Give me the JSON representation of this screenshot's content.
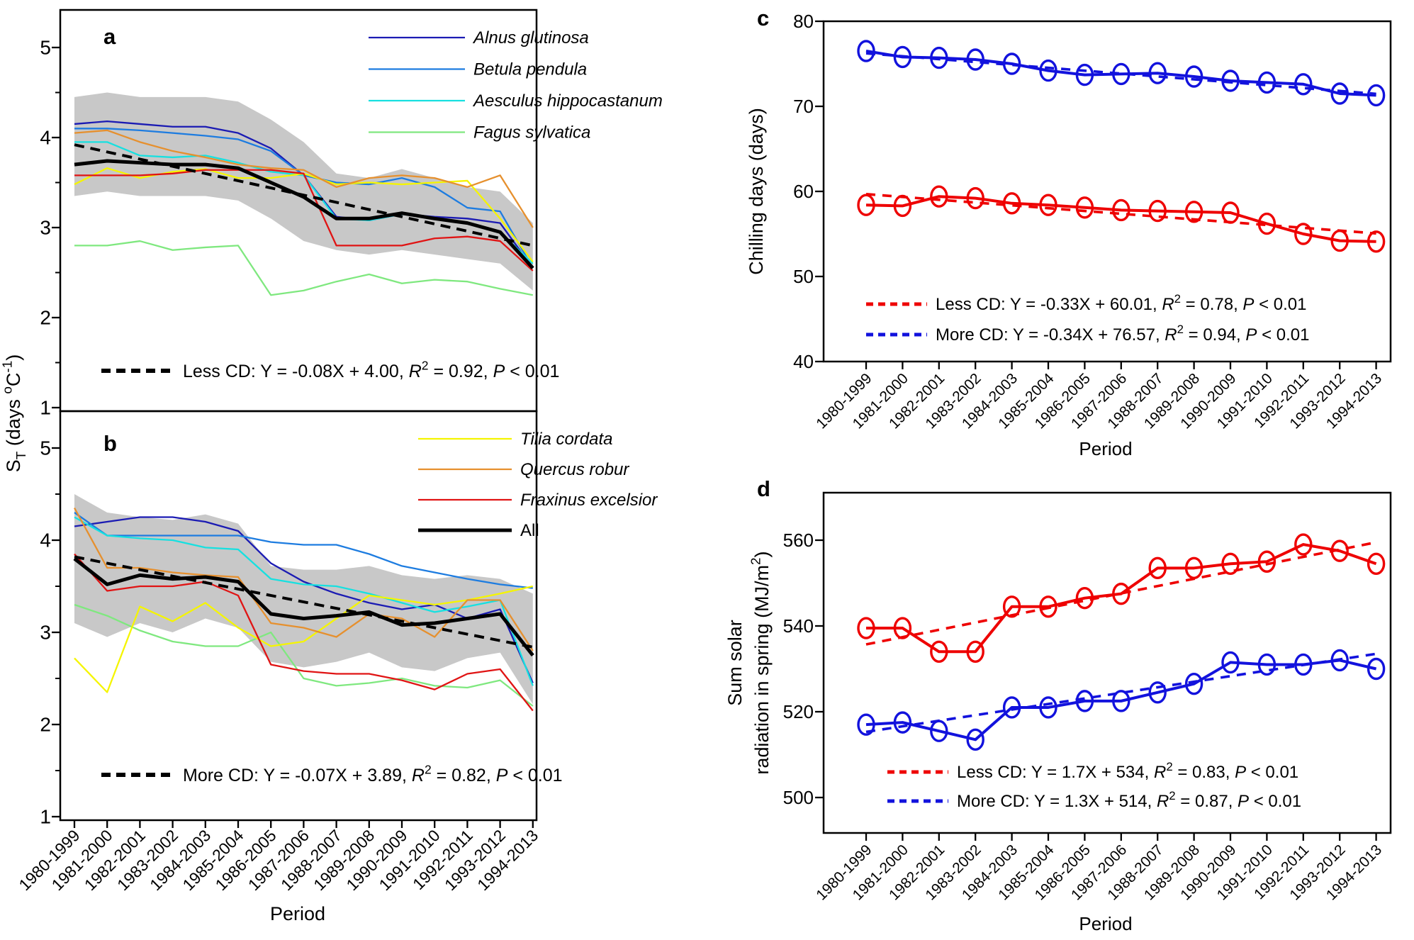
{
  "xlabel": "Period",
  "periods": [
    "1980-1999",
    "1981-2000",
    "1982-2001",
    "1983-2002",
    "1984-2003",
    "1985-2004",
    "1986-2005",
    "1987-2006",
    "1988-2007",
    "1989-2008",
    "1990-2009",
    "1991-2010",
    "1992-2011",
    "1993-2012",
    "1994-2013"
  ],
  "left_ylabel_parts": [
    {
      "t": "S"
    },
    {
      "t": "T",
      "v": "sub"
    },
    {
      "t": " (days "
    },
    {
      "t": "o",
      "v": "sup"
    },
    {
      "t": "C"
    },
    {
      "t": "-1",
      "v": "sup"
    },
    {
      "t": ")"
    }
  ],
  "colors": {
    "alnus": "#1b1bb3",
    "betula": "#1d7ce0",
    "aesculus": "#17e0e0",
    "fagus": "#7fe87f",
    "tilia": "#f5f500",
    "quercus": "#e6902e",
    "fraxinus": "#e01414",
    "all": "#000000",
    "band": "#c8c8c8",
    "cd_red": "#ee0000",
    "cd_blue": "#1212dd",
    "axis": "#000000"
  },
  "chart_data": [
    {
      "id": "a",
      "type": "line",
      "panel_label": "a",
      "ylim": [
        1,
        5.45
      ],
      "yticks": [
        1,
        2,
        3,
        4,
        5
      ],
      "yticks_minor": [
        1.5,
        2.5,
        3.5,
        4.5
      ],
      "grid": false,
      "legend_position": "top-right",
      "band": {
        "upper": [
          4.45,
          4.5,
          4.45,
          4.45,
          4.45,
          4.4,
          4.2,
          3.95,
          3.6,
          3.55,
          3.65,
          3.55,
          3.45,
          3.4,
          3.05
        ],
        "lower": [
          3.35,
          3.4,
          3.35,
          3.35,
          3.35,
          3.3,
          3.1,
          2.85,
          2.75,
          2.7,
          2.75,
          2.7,
          2.65,
          2.6,
          2.3
        ]
      },
      "series": [
        {
          "name": "Alnus glutinosa",
          "color_key": "alnus",
          "values": [
            4.15,
            4.18,
            4.15,
            4.12,
            4.12,
            4.05,
            3.88,
            3.58,
            3.12,
            3.08,
            3.15,
            3.12,
            3.1,
            3.05,
            2.55
          ]
        },
        {
          "name": "Betula pendula",
          "color_key": "betula",
          "values": [
            4.1,
            4.1,
            4.08,
            4.05,
            4.02,
            3.98,
            3.85,
            3.58,
            3.5,
            3.48,
            3.55,
            3.45,
            3.22,
            3.18,
            2.55
          ]
        },
        {
          "name": "Aesculus hippocastanum",
          "color_key": "aesculus",
          "values": [
            3.95,
            3.95,
            3.8,
            3.78,
            3.8,
            3.72,
            3.62,
            3.58,
            3.1,
            3.08,
            3.15,
            3.1,
            3.05,
            2.95,
            2.6
          ]
        },
        {
          "name": "Fagus sylvatica",
          "color_key": "fagus",
          "values": [
            2.8,
            2.8,
            2.85,
            2.75,
            2.78,
            2.8,
            2.25,
            2.3,
            2.4,
            2.48,
            2.38,
            2.42,
            2.4,
            2.32,
            2.25
          ]
        },
        {
          "name": "Tilia cordata",
          "color_key": "tilia",
          "in_legend": false,
          "values": [
            3.48,
            3.66,
            3.55,
            3.62,
            3.65,
            3.55,
            3.55,
            3.6,
            3.48,
            3.5,
            3.48,
            3.5,
            3.52,
            3.1,
            2.62
          ]
        },
        {
          "name": "Quercus robur",
          "color_key": "quercus",
          "in_legend": false,
          "values": [
            4.05,
            4.08,
            3.95,
            3.85,
            3.78,
            3.7,
            3.66,
            3.64,
            3.45,
            3.55,
            3.58,
            3.55,
            3.45,
            3.58,
            3.0
          ]
        },
        {
          "name": "Fraxinus excelsior",
          "color_key": "fraxinus",
          "in_legend": false,
          "values": [
            3.58,
            3.58,
            3.58,
            3.6,
            3.64,
            3.64,
            3.64,
            3.6,
            2.8,
            2.8,
            2.8,
            2.88,
            2.9,
            2.85,
            2.52
          ]
        },
        {
          "name": "All",
          "color_key": "all",
          "in_legend": false,
          "thick": true,
          "values": [
            3.7,
            3.74,
            3.72,
            3.7,
            3.7,
            3.66,
            3.5,
            3.34,
            3.1,
            3.1,
            3.16,
            3.1,
            3.05,
            2.95,
            2.55
          ]
        }
      ],
      "legend": [
        {
          "label": "Alnus glutinosa",
          "color_key": "alnus",
          "italic": true
        },
        {
          "label": "Betula pendula",
          "color_key": "betula",
          "italic": true
        },
        {
          "label": "Aesculus hippocastanum",
          "color_key": "aesculus",
          "italic": true
        },
        {
          "label": "Fagus sylvatica",
          "color_key": "fagus",
          "italic": true
        }
      ],
      "trend": {
        "slope": -0.08,
        "intercept": 4.0,
        "color_key": "all"
      },
      "equation": {
        "prefix": "Less CD: ",
        "formula": "Y = -0.08X + 4.00",
        "r2": "0.92",
        "p": "< 0.01"
      }
    },
    {
      "id": "b",
      "type": "line",
      "panel_label": "b",
      "ylim": [
        1,
        5.45
      ],
      "yticks": [
        1,
        2,
        3,
        4,
        5
      ],
      "yticks_minor": [
        1.5,
        2.5,
        3.5,
        4.5
      ],
      "band": {
        "upper": [
          4.5,
          4.3,
          4.25,
          4.22,
          4.28,
          4.18,
          3.72,
          3.68,
          3.68,
          3.72,
          3.62,
          3.58,
          3.62,
          3.58,
          3.42
        ],
        "lower": [
          3.1,
          2.95,
          3.1,
          3.0,
          3.15,
          3.05,
          2.68,
          2.62,
          2.68,
          2.78,
          2.62,
          2.58,
          2.72,
          2.78,
          2.22
        ]
      },
      "series": [
        {
          "name": "Alnus glutinosa",
          "color_key": "alnus",
          "values": [
            4.15,
            4.2,
            4.25,
            4.25,
            4.2,
            4.1,
            3.75,
            3.55,
            3.42,
            3.32,
            3.25,
            3.3,
            3.15,
            3.25,
            2.45
          ]
        },
        {
          "name": "Betula pendula",
          "color_key": "betula",
          "values": [
            4.3,
            4.05,
            4.05,
            4.05,
            4.05,
            4.05,
            3.98,
            3.95,
            3.95,
            3.85,
            3.72,
            3.65,
            3.58,
            3.52,
            3.48
          ]
        },
        {
          "name": "Aesculus hippocastanum",
          "color_key": "aesculus",
          "values": [
            4.25,
            4.05,
            4.02,
            4.0,
            3.92,
            3.9,
            3.58,
            3.52,
            3.5,
            3.42,
            3.32,
            3.22,
            3.28,
            3.35,
            2.42
          ]
        },
        {
          "name": "Fagus sylvatica",
          "color_key": "fagus",
          "values": [
            3.3,
            3.18,
            3.02,
            2.9,
            2.85,
            2.85,
            3.0,
            2.5,
            2.42,
            2.45,
            2.5,
            2.42,
            2.4,
            2.48,
            2.2
          ]
        },
        {
          "name": "Tilia cordata",
          "color_key": "tilia",
          "values": [
            2.72,
            2.35,
            3.28,
            3.12,
            3.32,
            3.05,
            2.85,
            2.9,
            3.15,
            3.4,
            3.35,
            3.3,
            3.35,
            3.42,
            3.5
          ]
        },
        {
          "name": "Quercus robur",
          "color_key": "quercus",
          "values": [
            4.35,
            3.7,
            3.7,
            3.65,
            3.62,
            3.6,
            3.1,
            3.05,
            2.95,
            3.2,
            3.15,
            2.95,
            3.35,
            3.35,
            2.8
          ]
        },
        {
          "name": "Fraxinus excelsior",
          "color_key": "fraxinus",
          "values": [
            3.85,
            3.45,
            3.5,
            3.5,
            3.55,
            3.4,
            2.65,
            2.58,
            2.55,
            2.55,
            2.48,
            2.38,
            2.55,
            2.6,
            2.15
          ]
        },
        {
          "name": "All",
          "color_key": "all",
          "thick": true,
          "values": [
            3.8,
            3.52,
            3.62,
            3.58,
            3.6,
            3.55,
            3.2,
            3.15,
            3.18,
            3.22,
            3.08,
            3.1,
            3.15,
            3.2,
            2.75
          ]
        }
      ],
      "legend": [
        {
          "label": "Tilia cordata",
          "color_key": "tilia",
          "italic": true
        },
        {
          "label": "Quercus robur",
          "color_key": "quercus",
          "italic": true
        },
        {
          "label": "Fraxinus excelsior",
          "color_key": "fraxinus",
          "italic": true
        },
        {
          "label": "All",
          "color_key": "all",
          "italic": false,
          "thick": true
        }
      ],
      "trend": {
        "slope": -0.07,
        "intercept": 3.89,
        "color_key": "all"
      },
      "equation": {
        "prefix": "More CD: ",
        "formula": "Y = -0.07X + 3.89",
        "r2": "0.82",
        "p": "< 0.01"
      }
    },
    {
      "id": "c",
      "type": "line",
      "panel_label": "c",
      "ylabel": "Chilling days (days)",
      "ylim": [
        40,
        80
      ],
      "yticks": [
        40,
        50,
        60,
        70,
        80
      ],
      "series": [
        {
          "name": "More CD",
          "color_key": "cd_blue",
          "marker": "circle",
          "values": [
            76.5,
            75.8,
            75.7,
            75.5,
            75.0,
            74.2,
            73.7,
            73.8,
            73.9,
            73.5,
            73.0,
            72.8,
            72.6,
            71.5,
            71.3
          ]
        },
        {
          "name": "Less CD",
          "color_key": "cd_red",
          "marker": "circle",
          "values": [
            58.4,
            58.3,
            59.4,
            59.2,
            58.6,
            58.4,
            58.1,
            57.8,
            57.7,
            57.6,
            57.5,
            56.2,
            55.0,
            54.2,
            54.1
          ]
        }
      ],
      "trends": [
        {
          "slope": -0.33,
          "intercept": 60.01,
          "color_key": "cd_red"
        },
        {
          "slope": -0.34,
          "intercept": 76.57,
          "color_key": "cd_blue"
        }
      ],
      "legend_eq": [
        {
          "color_key": "cd_red",
          "prefix": "Less CD: ",
          "formula": "Y = -0.33X + 60.01",
          "r2": "0.78",
          "p": "< 0.01"
        },
        {
          "color_key": "cd_blue",
          "prefix": "More CD:  ",
          "formula": "Y = -0.34X + 76.57",
          "r2": "0.94",
          "p": "< 0.01"
        }
      ]
    },
    {
      "id": "d",
      "type": "line",
      "panel_label": "d",
      "ylabel_line1": "Sum solar",
      "ylabel_line2_parts": [
        {
          "t": "radiation in spring (MJ/m"
        },
        {
          "t": "2",
          "v": "sup"
        },
        {
          "t": ")"
        }
      ],
      "ylim": [
        490,
        570
      ],
      "yticks": [
        500,
        520,
        540,
        560
      ],
      "series": [
        {
          "name": "Less CD",
          "color_key": "cd_red",
          "marker": "circle",
          "values": [
            539.5,
            539.5,
            534,
            534,
            544.5,
            544.5,
            546.5,
            547.5,
            553.5,
            553.5,
            554.5,
            555,
            559,
            557.5,
            554.5
          ]
        },
        {
          "name": "More CD",
          "color_key": "cd_blue",
          "marker": "circle",
          "values": [
            517,
            517.5,
            515.5,
            513.5,
            521,
            521,
            522.5,
            522.5,
            524.5,
            526.5,
            531.5,
            531,
            531,
            532,
            530
          ]
        }
      ],
      "trends": [
        {
          "slope": 1.7,
          "intercept": 534,
          "color_key": "cd_red"
        },
        {
          "slope": 1.3,
          "intercept": 514,
          "color_key": "cd_blue"
        }
      ],
      "legend_eq": [
        {
          "color_key": "cd_red",
          "prefix": "Less CD: ",
          "formula": "Y = 1.7X + 534",
          "r2": "0.83",
          "p": "< 0.01"
        },
        {
          "color_key": "cd_blue",
          "prefix": "More CD: ",
          "formula": "Y = 1.3X + 514",
          "r2": "0.87",
          "p": "< 0.01"
        }
      ]
    }
  ]
}
